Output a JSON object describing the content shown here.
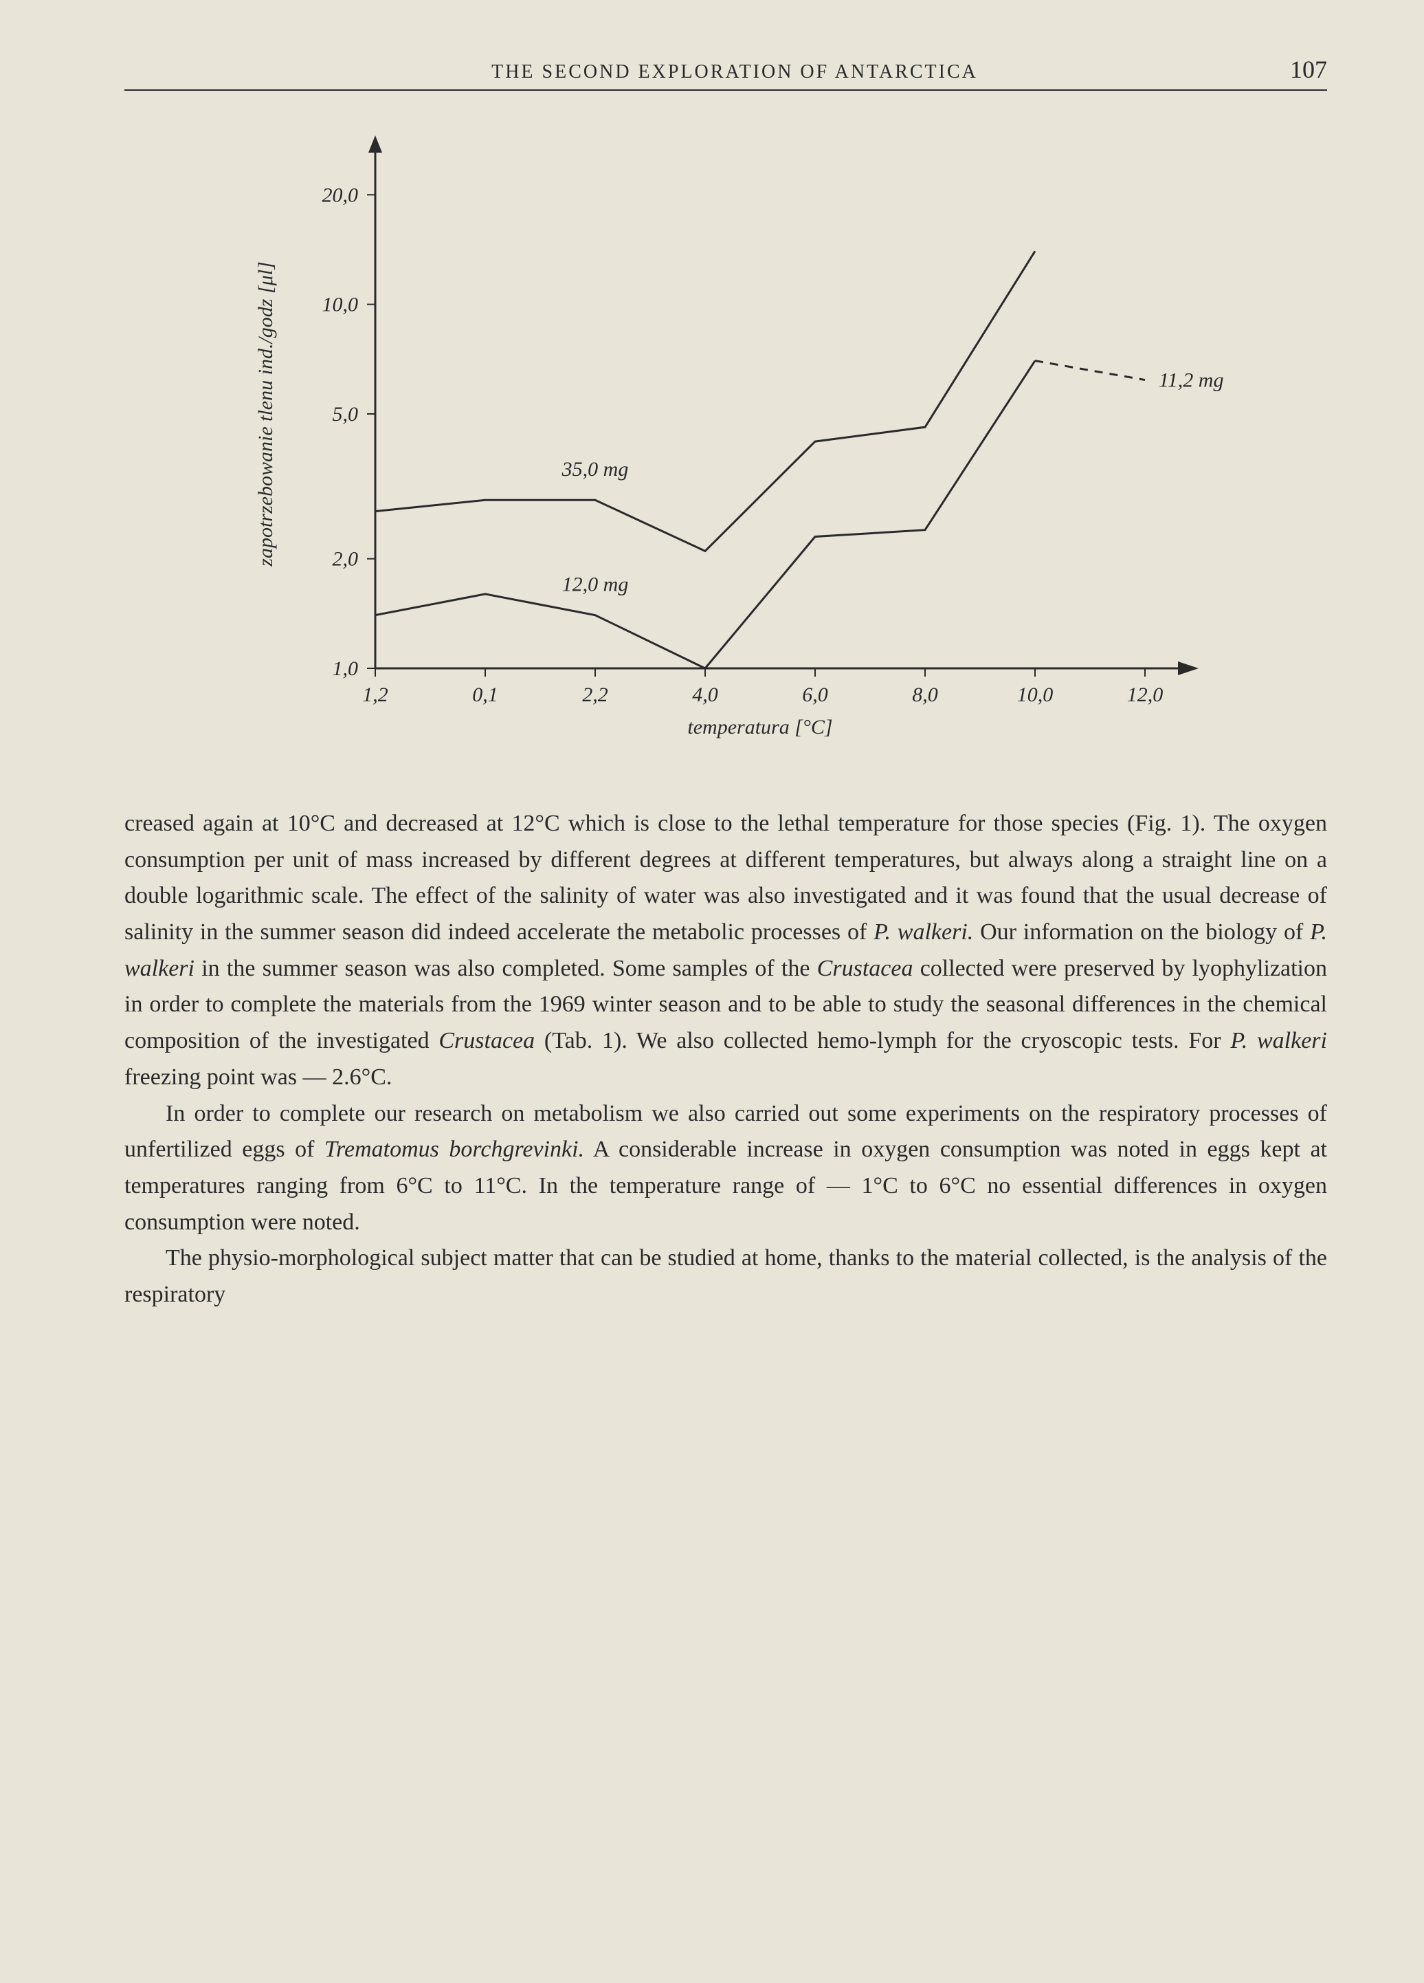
{
  "header": {
    "title": "THE SECOND EXPLORATION OF ANTARCTICA",
    "page_number": "107"
  },
  "chart": {
    "type": "line",
    "y_axis": {
      "label": "zapotrzebowanie tlenu ind./godz [μl]",
      "scale": "log",
      "ticks": [
        "1,0",
        "2,0",
        "5,0",
        "10,0",
        "20,0"
      ],
      "tick_values": [
        1.0,
        2.0,
        5.0,
        10.0,
        20.0
      ],
      "lim": [
        1.0,
        25.0
      ],
      "font_size": 30,
      "font_style": "italic"
    },
    "x_axis": {
      "label": "temperatura [°C]",
      "ticks": [
        "1,2",
        "0,1",
        "2,2",
        "4,0",
        "6,0",
        "8,0",
        "10,0",
        "12,0"
      ],
      "tick_positions": [
        0,
        1,
        2,
        3,
        4,
        5,
        6,
        7
      ],
      "font_size": 30,
      "font_style": "italic"
    },
    "series": [
      {
        "name": "35_0_mg",
        "label": "35,0 mg",
        "label_position_index": 2,
        "values": [
          2.7,
          2.9,
          2.9,
          2.1,
          4.2,
          4.6,
          14.0
        ],
        "x_indices": [
          0,
          1,
          2,
          3,
          4,
          5,
          6
        ],
        "line_style": "solid",
        "color": "#2a2a2a",
        "line_width": 3
      },
      {
        "name": "12_0_mg",
        "label": "12,0 mg",
        "label_position_index": 2,
        "values": [
          1.4,
          1.6,
          1.4,
          1.0,
          2.3,
          2.4,
          7.0
        ],
        "x_indices": [
          0,
          1,
          2,
          3,
          4,
          5,
          6
        ],
        "line_style": "solid",
        "color": "#2a2a2a",
        "line_width": 3
      },
      {
        "name": "11_2_mg",
        "label": "11,2 mg",
        "label_position_index": 7,
        "label_side": "right",
        "values": [
          7.0,
          6.2
        ],
        "x_indices": [
          6,
          7
        ],
        "line_style": "dashed",
        "color": "#2a2a2a",
        "line_width": 3
      }
    ],
    "background_color": "#e8e4d8",
    "axis_color": "#2a2a2a",
    "axis_width": 3
  },
  "body": {
    "paragraphs": [
      {
        "continued": true,
        "segments": [
          {
            "text": "creased again at 10°C and decreased at 12°C which is close to the lethal temperature for those species (Fig. 1). The oxygen consumption per unit of mass increased by different degrees at different temperatures, but always along a straight line on a double logarithmic scale. The effect of the salinity of water was also investigated and it was found that the usual decrease of salinity in the summer season did indeed accelerate the metabolic processes of ",
            "style": "normal"
          },
          {
            "text": "P. walkeri.",
            "style": "italic"
          },
          {
            "text": " Our information on the biology of ",
            "style": "normal"
          },
          {
            "text": "P. walkeri",
            "style": "italic"
          },
          {
            "text": " in the summer season was also completed. Some samples of the ",
            "style": "normal"
          },
          {
            "text": "Crustacea",
            "style": "italic"
          },
          {
            "text": " collected were preserved by lyophylization in order to complete the materials from the 1969 winter season and to be able to study the seasonal differences in the chemical composition of the investigated ",
            "style": "normal"
          },
          {
            "text": "Crustacea",
            "style": "italic"
          },
          {
            "text": " (Tab. 1). We also collected hemo-lymph for the cryoscopic tests. For ",
            "style": "normal"
          },
          {
            "text": "P. walkeri",
            "style": "italic"
          },
          {
            "text": " freezing point was — 2.6°C.",
            "style": "normal"
          }
        ]
      },
      {
        "continued": false,
        "segments": [
          {
            "text": "In order to complete our research on metabolism we also carried out some experiments on the respiratory processes of unfertilized eggs of ",
            "style": "normal"
          },
          {
            "text": "Trematomus borchgrevinki.",
            "style": "italic"
          },
          {
            "text": " A considerable increase in oxygen consumption was noted in eggs kept at temperatures ranging from 6°C to 11°C. In the temperature range of — 1°C to 6°C no essential differences in oxygen consumption were noted.",
            "style": "normal"
          }
        ]
      },
      {
        "continued": false,
        "segments": [
          {
            "text": "The physio-morphological subject matter that can be studied at home, thanks to the material collected, is the analysis of the respiratory",
            "style": "normal"
          }
        ]
      }
    ]
  }
}
